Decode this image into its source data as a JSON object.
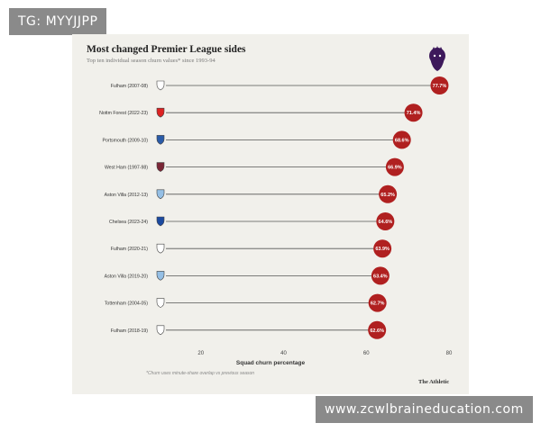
{
  "watermark_top": "TG: MYYJJPP",
  "watermark_bottom": "www.zcwlbraineducation.com",
  "logo": "premier-league-lion-icon",
  "brand": "The Athletic",
  "footnote": "*Churn uses minute-share overlap vs previous season",
  "colors": {
    "bubble": "#b02020",
    "line": "#555555",
    "card": "#f1f0eb",
    "logo": "#3d195b"
  },
  "chart_data": {
    "type": "bar",
    "title": "Most changed Premier League sides",
    "subtitle": "Top ten individual season churn values* since 1993-94",
    "xlabel": "Squad churn percentage",
    "ylabel": "",
    "xlim": [
      0,
      80
    ],
    "xticks": [
      20,
      40,
      60,
      80
    ],
    "grid": false,
    "categories": [
      "Fulham (2007-08)",
      "Nottm Forest (2022-23)",
      "Portsmouth (2009-10)",
      "West Ham (1997-98)",
      "Aston Villa (2012-13)",
      "Chelsea (2023-24)",
      "Fulham (2020-21)",
      "Aston Villa (2019-20)",
      "Tottenham (2004-05)",
      "Fulham (2018-19)"
    ],
    "values": [
      77.7,
      71.4,
      68.6,
      66.9,
      65.2,
      64.6,
      63.9,
      63.4,
      62.7,
      62.6
    ],
    "value_labels": [
      "77.7%",
      "71.4%",
      "68.6%",
      "66.9%",
      "65.2%",
      "64.6%",
      "63.9%",
      "63.4%",
      "62.7%",
      "62.6%"
    ],
    "crest_icons": [
      "fulham-crest-icon",
      "nottm-forest-crest-icon",
      "portsmouth-crest-icon",
      "west-ham-crest-icon",
      "aston-villa-crest-icon",
      "chelsea-crest-icon",
      "fulham-crest-icon",
      "aston-villa-crest-icon",
      "tottenham-crest-icon",
      "fulham-crest-icon"
    ],
    "crest_colors": [
      "#ffffff",
      "#dd2222",
      "#2a5ba8",
      "#7a2636",
      "#95bfe5",
      "#1b4aa0",
      "#ffffff",
      "#95bfe5",
      "#ffffff",
      "#ffffff"
    ]
  }
}
